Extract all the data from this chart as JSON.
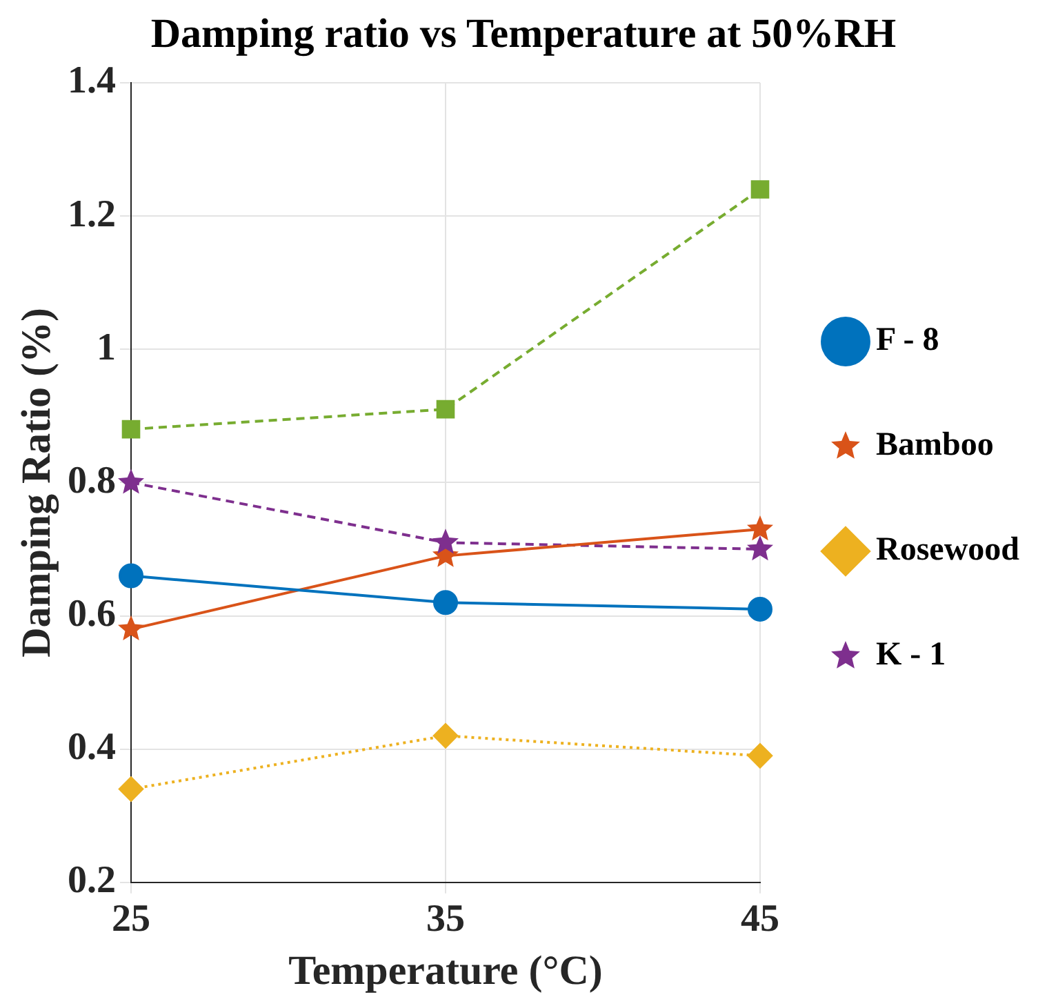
{
  "chart_data": {
    "type": "line",
    "title": "Damping ratio vs Temperature at 50%RH",
    "xlabel": "Temperature (°C)",
    "ylabel": "Damping Ratio (%)",
    "x": [
      25,
      35,
      45
    ],
    "xlim": [
      25,
      45
    ],
    "xticks": [
      25,
      35,
      45
    ],
    "ylim": [
      0.2,
      1.4
    ],
    "yticks": [
      0.2,
      0.4,
      0.6,
      0.8,
      1,
      1.2,
      1.4
    ],
    "grid": true,
    "legend": "right",
    "series": [
      {
        "name": "F - 8",
        "color": "#0072bd",
        "marker": "circle",
        "line_style": "solid",
        "values": [
          0.66,
          0.62,
          0.61
        ]
      },
      {
        "name": "Bamboo",
        "color": "#d95319",
        "marker": "star",
        "line_style": "solid",
        "values": [
          0.58,
          0.69,
          0.73
        ]
      },
      {
        "name": "Rosewood",
        "color": "#edb120",
        "marker": "diamond",
        "line_style": "dotted",
        "values": [
          0.34,
          0.42,
          0.39
        ]
      },
      {
        "name": "K - 1",
        "color": "#7e2f8e",
        "marker": "star",
        "line_style": "dashed",
        "values": [
          0.8,
          0.71,
          0.7
        ]
      },
      {
        "color": "#77ac30",
        "marker": "square",
        "line_style": "dashed",
        "values": [
          0.88,
          0.91,
          1.24
        ]
      }
    ]
  }
}
